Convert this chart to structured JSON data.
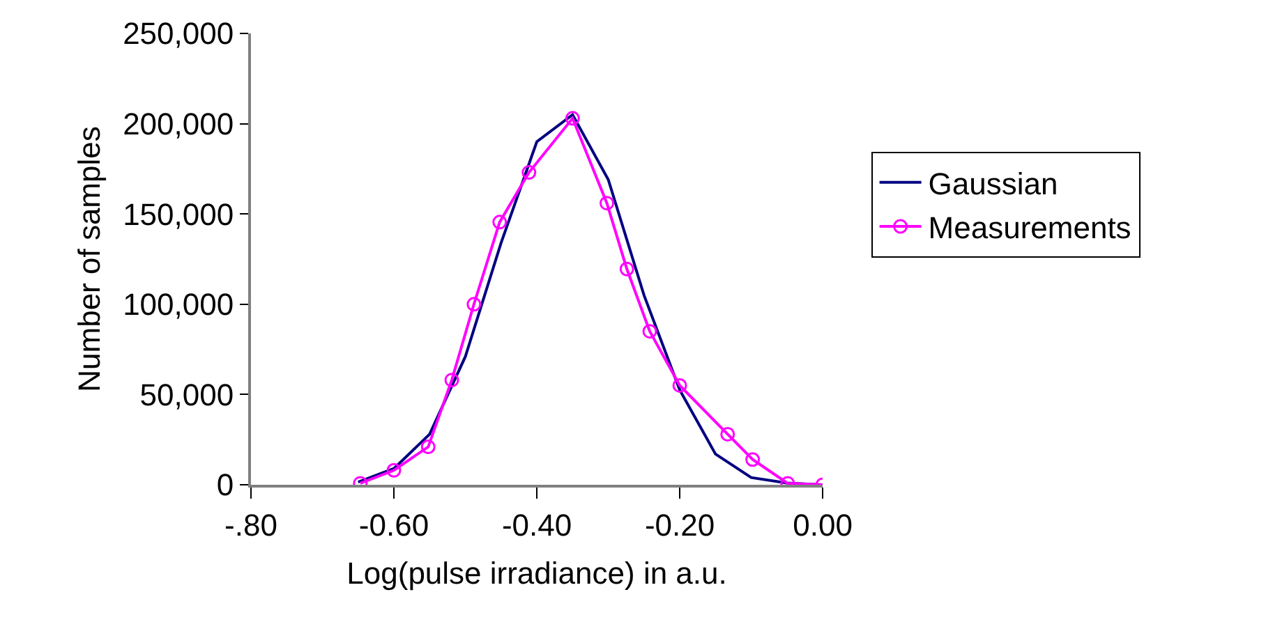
{
  "chart_data": {
    "type": "line",
    "xlabel": "Log(pulse irradiance) in a.u.",
    "ylabel": "Number of samples",
    "xlim": [
      -0.8,
      0.0
    ],
    "xticks": [
      {
        "value": -0.8,
        "label": "-.80"
      },
      {
        "value": -0.6,
        "label": "-0.60"
      },
      {
        "value": -0.4,
        "label": "-0.40"
      },
      {
        "value": -0.2,
        "label": "-0.20"
      },
      {
        "value": 0.0,
        "label": "0.00"
      }
    ],
    "ylim": [
      0,
      250000
    ],
    "yticks": [
      {
        "value": 0,
        "label": "0"
      },
      {
        "value": 50000,
        "label": "50,000"
      },
      {
        "value": 100000,
        "label": "100,000"
      },
      {
        "value": 150000,
        "label": "150,000"
      },
      {
        "value": 200000,
        "label": "200,000"
      },
      {
        "value": 250000,
        "label": "250,000"
      }
    ],
    "legend": "right",
    "series": [
      {
        "name": "Gaussian",
        "color": "#000080",
        "marker": "none",
        "x": [
          -0.65,
          -0.6,
          -0.55,
          -0.5,
          -0.45,
          -0.4,
          -0.35,
          -0.3,
          -0.25,
          -0.2,
          -0.15,
          -0.1,
          -0.05,
          0.0
        ],
        "values": [
          1500,
          9000,
          28000,
          71000,
          134000,
          190000,
          205000,
          169000,
          105000,
          52500,
          17000,
          4000,
          1000,
          0
        ]
      },
      {
        "name": "Measurements",
        "color": "#ff00ff",
        "marker": "circle",
        "x": [
          -0.647,
          -0.6,
          -0.552,
          -0.519,
          -0.488,
          -0.452,
          -0.411,
          -0.35,
          -0.302,
          -0.274,
          -0.242,
          -0.2,
          -0.133,
          -0.098,
          -0.049,
          0.0
        ],
        "values": [
          800,
          8000,
          21000,
          58000,
          100000,
          145500,
          173000,
          203000,
          156000,
          119500,
          85000,
          55000,
          28000,
          14000,
          800,
          0
        ]
      }
    ]
  }
}
